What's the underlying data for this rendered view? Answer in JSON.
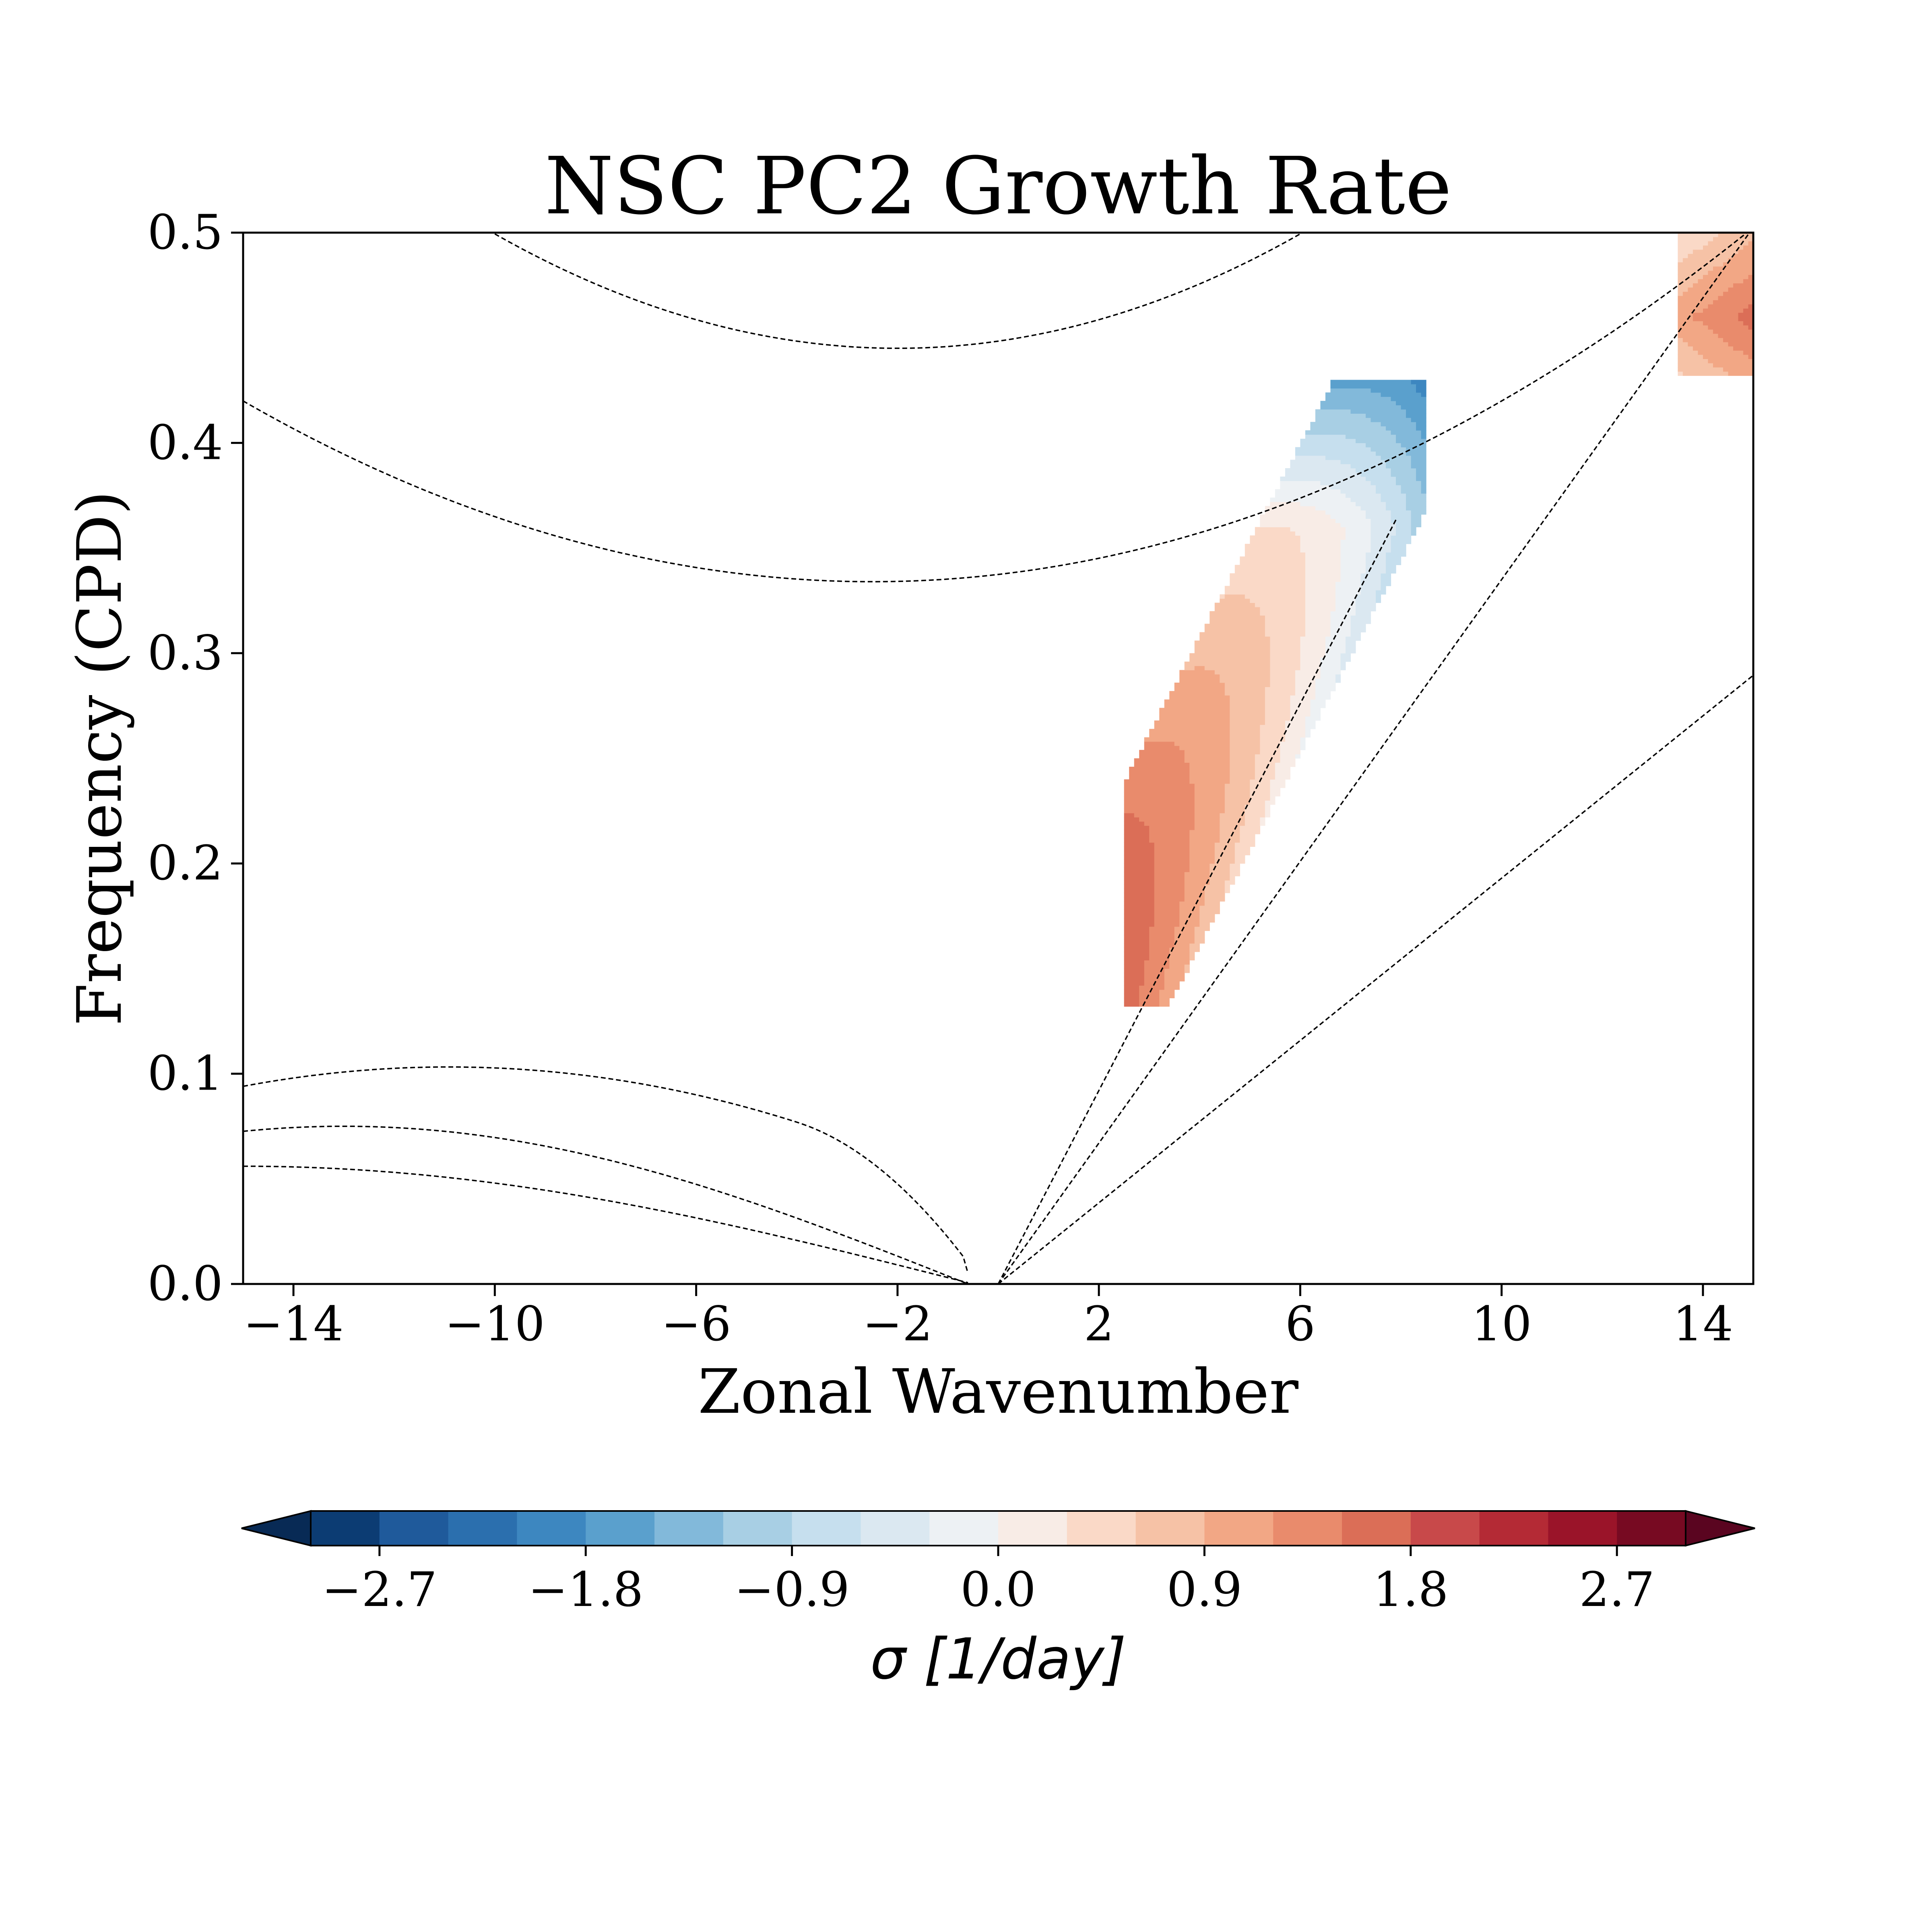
{
  "chart_data": {
    "type": "contourf",
    "title": "NSC PC2 Growth Rate",
    "xlabel": "Zonal Wavenumber",
    "ylabel": "Frequency (CPD)",
    "xlim": [
      -15,
      15
    ],
    "ylim": [
      0,
      0.5
    ],
    "xticks": [
      -14,
      -10,
      -6,
      -2,
      2,
      6,
      10,
      14
    ],
    "xtick_labels": [
      "−14",
      "−10",
      "−6",
      "−2",
      "2",
      "6",
      "10",
      "14"
    ],
    "yticks": [
      0.0,
      0.1,
      0.2,
      0.3,
      0.4,
      0.5
    ],
    "ytick_labels": [
      "0.0",
      "0.1",
      "0.2",
      "0.3",
      "0.4",
      "0.5"
    ],
    "grid": false,
    "colorbar": {
      "label": "σ [1/day]",
      "orientation": "horizontal",
      "extend": "both",
      "range": [
        -3.0,
        3.0
      ],
      "ticks": [
        -2.7,
        -1.8,
        -0.9,
        0.0,
        0.9,
        1.8,
        2.7
      ],
      "tick_labels": [
        "−2.7",
        "−1.8",
        "−0.9",
        "0.0",
        "0.9",
        "1.8",
        "2.7"
      ],
      "colors": [
        "#0c3c73",
        "#1f5a9b",
        "#2b6fae",
        "#3d87c0",
        "#5aa0cd",
        "#82b9da",
        "#a8cfe4",
        "#c6dfee",
        "#dbe8f1",
        "#edf1f4",
        "#f8ece6",
        "#fad9c7",
        "#f6c2a6",
        "#f2a785",
        "#e98b6c",
        "#db6e57",
        "#c8494a",
        "#b42a35",
        "#9a1429",
        "#770a22"
      ],
      "extend_min_color": "#082a55",
      "extend_max_color": "#5a0520"
    },
    "reference_curves": {
      "style": "dashed",
      "color": "#000000",
      "count": 9
    },
    "contour_regions": [
      {
        "name": "eastward-band",
        "x_range": [
          2.5,
          8.5
        ],
        "y_range": [
          0.13,
          0.43
        ],
        "sigma_range": [
          -2.4,
          1.8
        ]
      },
      {
        "name": "high-wavenumber-patch",
        "x_range": [
          13.5,
          15
        ],
        "y_range": [
          0.43,
          0.5
        ],
        "sigma_range": [
          0.2,
          1.2
        ]
      }
    ]
  }
}
